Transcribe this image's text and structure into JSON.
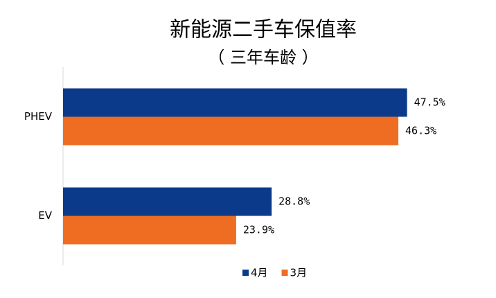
{
  "chart_data": {
    "type": "hbar",
    "title": "新能源二手车保值率",
    "subtitle": "（ 三年车龄 ）",
    "categories": [
      "PHEV",
      "EV"
    ],
    "series": [
      {
        "name": "4月",
        "color": "#0b3a8a",
        "values": [
          47.5,
          28.8
        ],
        "value_labels": [
          "47.5%",
          "28.8%"
        ]
      },
      {
        "name": "3月",
        "color": "#ee6d22",
        "values": [
          46.3,
          23.9
        ],
        "value_labels": [
          "46.3%",
          "23.9%"
        ]
      }
    ],
    "xlim": [
      0,
      55
    ],
    "legend": "bottom"
  }
}
